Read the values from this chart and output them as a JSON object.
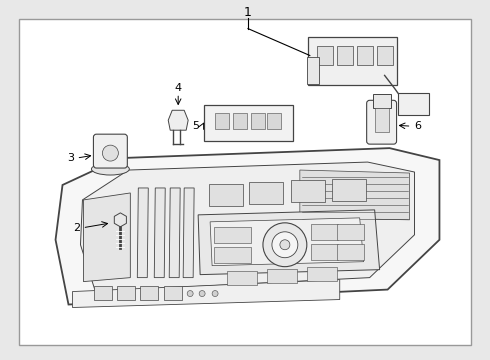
{
  "bg_color": "#e8e8e8",
  "box_bg": "#ffffff",
  "box_edge": "#888888",
  "lc": "#444444",
  "lw": 0.8,
  "fig_w": 4.9,
  "fig_h": 3.6,
  "dpi": 100
}
